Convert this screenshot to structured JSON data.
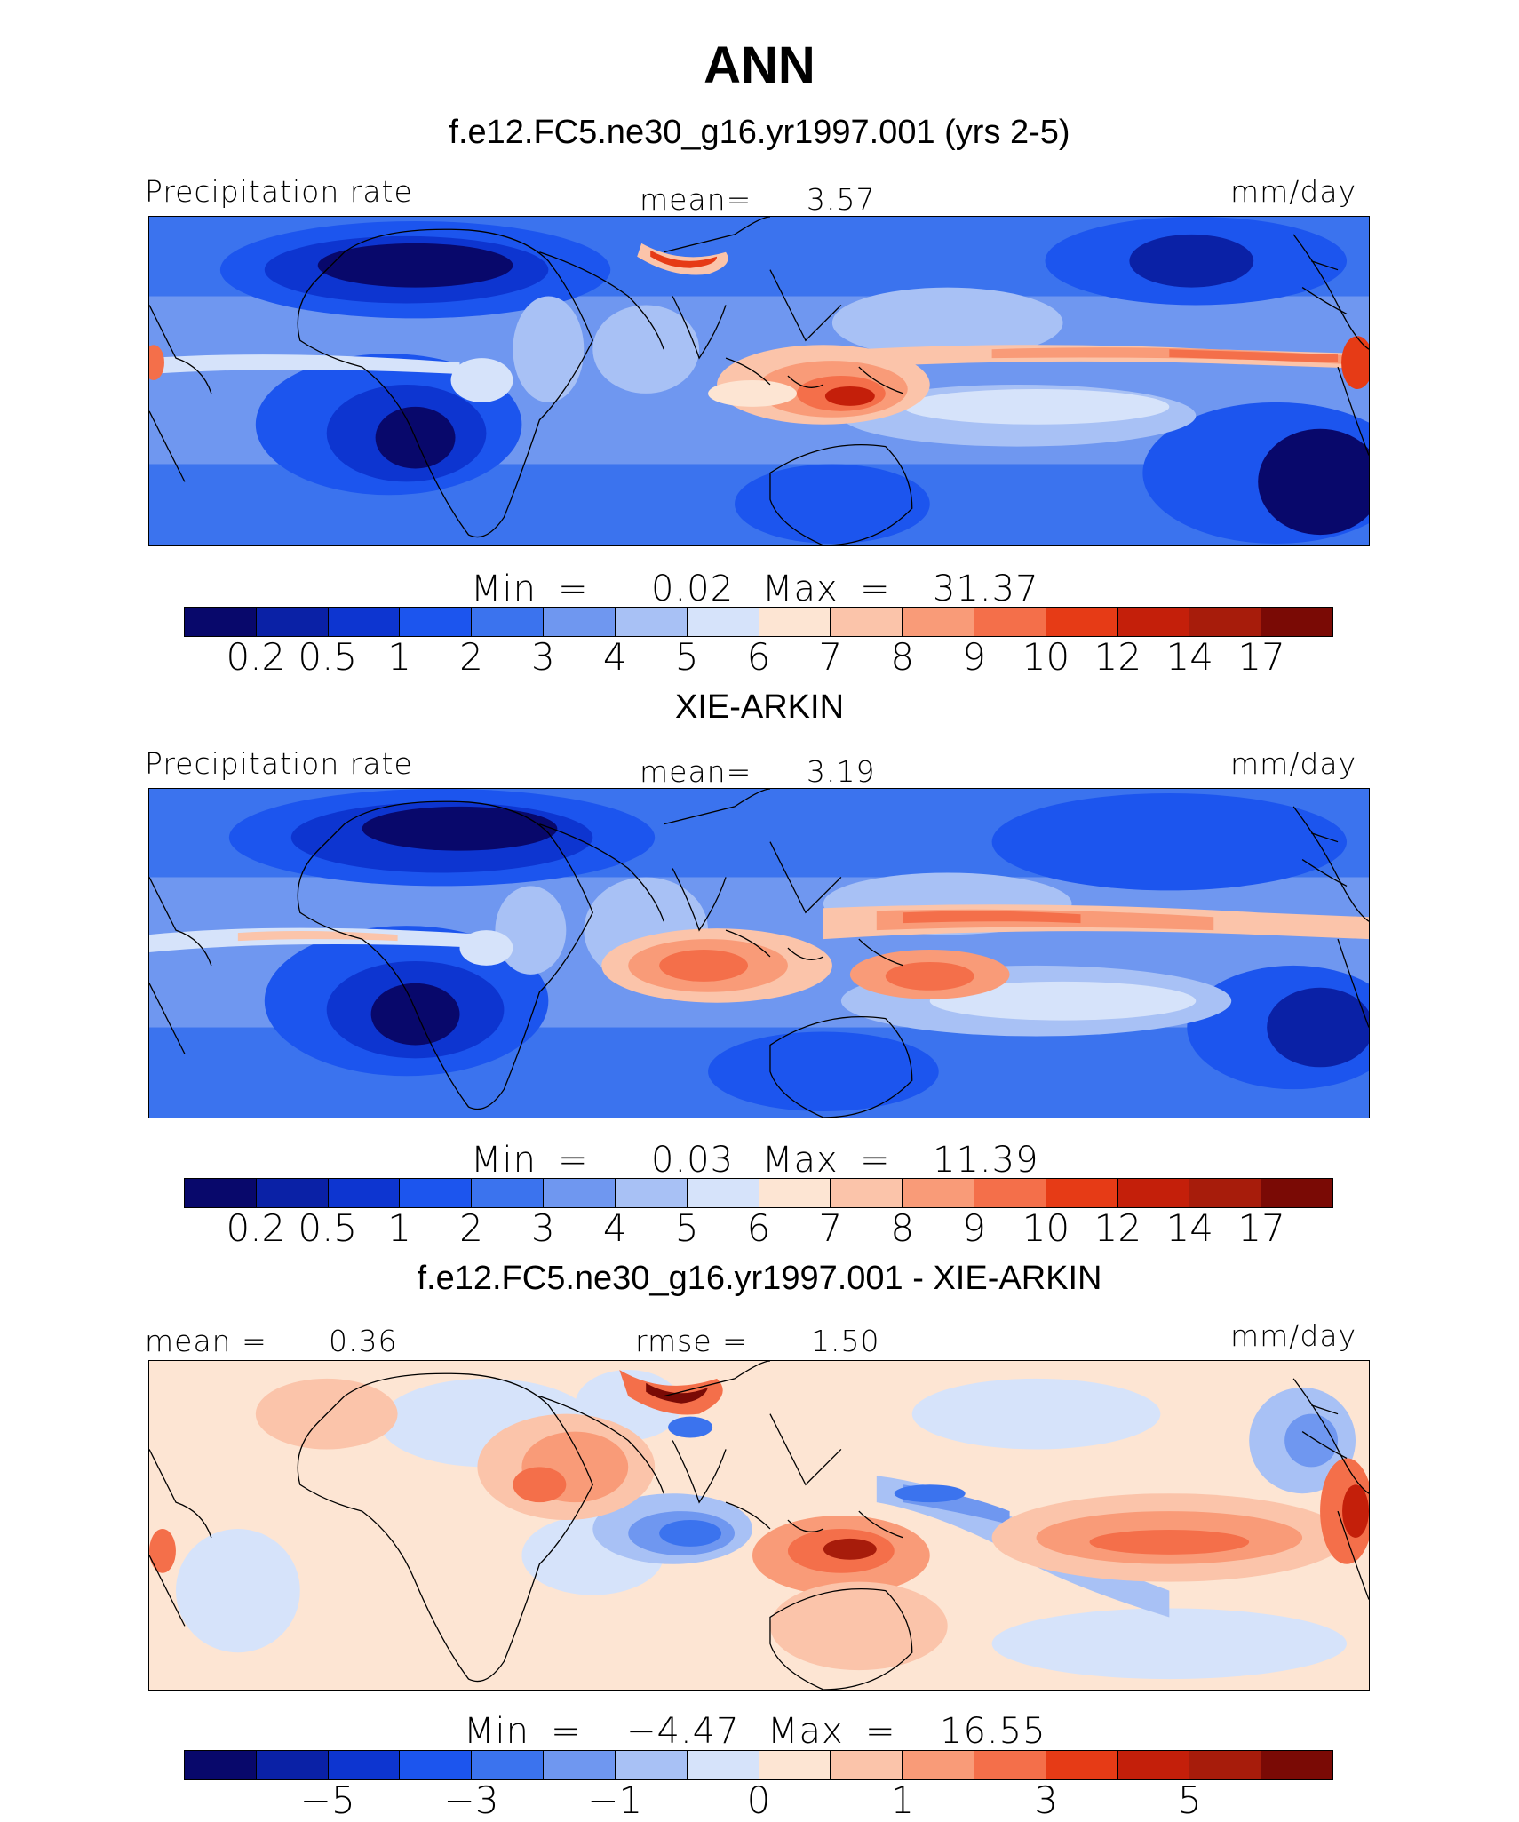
{
  "title": "ANN",
  "colors": {
    "abs": [
      "#08086b",
      "#0a21a6",
      "#0d35d0",
      "#1c55ee",
      "#3b73ee",
      "#6f97f0",
      "#a8c1f5",
      "#d6e3fa",
      "#fde5d3",
      "#fbc4aa",
      "#f99b78",
      "#f46f4a",
      "#e63b16",
      "#c41f0a",
      "#a71c0b",
      "#7a0a05"
    ],
    "diff": [
      "#08086b",
      "#0a21a6",
      "#0d35d0",
      "#1c55ee",
      "#3b73ee",
      "#6f97f0",
      "#a8c1f5",
      "#d6e3fa",
      "#fde5d3",
      "#fbc4aa",
      "#f99b78",
      "#f46f4a",
      "#e63b16",
      "#c41f0a",
      "#a71c0b",
      "#7a0a05"
    ]
  },
  "panels": [
    {
      "id": "model",
      "heading": "f.e12.FC5.ne30_g16.yr1997.001 (yrs 2-5)",
      "left_label": "Precipitation rate",
      "center_label": "mean=",
      "center_value": "3.57",
      "right_label": "mm/day",
      "min_label": "Min",
      "eq": "=",
      "min_value": "0.02",
      "max_label": "Max",
      "max_value": "31.37",
      "ticks": [
        "0.2",
        "0.5",
        "1",
        "2",
        "3",
        "4",
        "5",
        "6",
        "7",
        "8",
        "9",
        "10",
        "12",
        "14",
        "17"
      ]
    },
    {
      "id": "obs",
      "heading": "XIE-ARKIN",
      "left_label": "Precipitation rate",
      "center_label": "mean=",
      "center_value": "3.19",
      "right_label": "mm/day",
      "min_label": "Min",
      "eq": "=",
      "min_value": "0.03",
      "max_label": "Max",
      "max_value": "11.39",
      "ticks": [
        "0.2",
        "0.5",
        "1",
        "2",
        "3",
        "4",
        "5",
        "6",
        "7",
        "8",
        "9",
        "10",
        "12",
        "14",
        "17"
      ]
    },
    {
      "id": "diff",
      "heading": "f.e12.FC5.ne30_g16.yr1997.001 - XIE-ARKIN",
      "left_label": "mean =",
      "left_value": "0.36",
      "center_label": "rmse =",
      "center_value": "1.50",
      "right_label": "mm/day",
      "min_label": "Min",
      "eq": "=",
      "min_value": "−4.47",
      "max_label": "Max",
      "max_value": "16.55",
      "ticks": [
        "−5",
        "−3",
        "−1",
        "0",
        "1",
        "3",
        "5"
      ]
    }
  ]
}
